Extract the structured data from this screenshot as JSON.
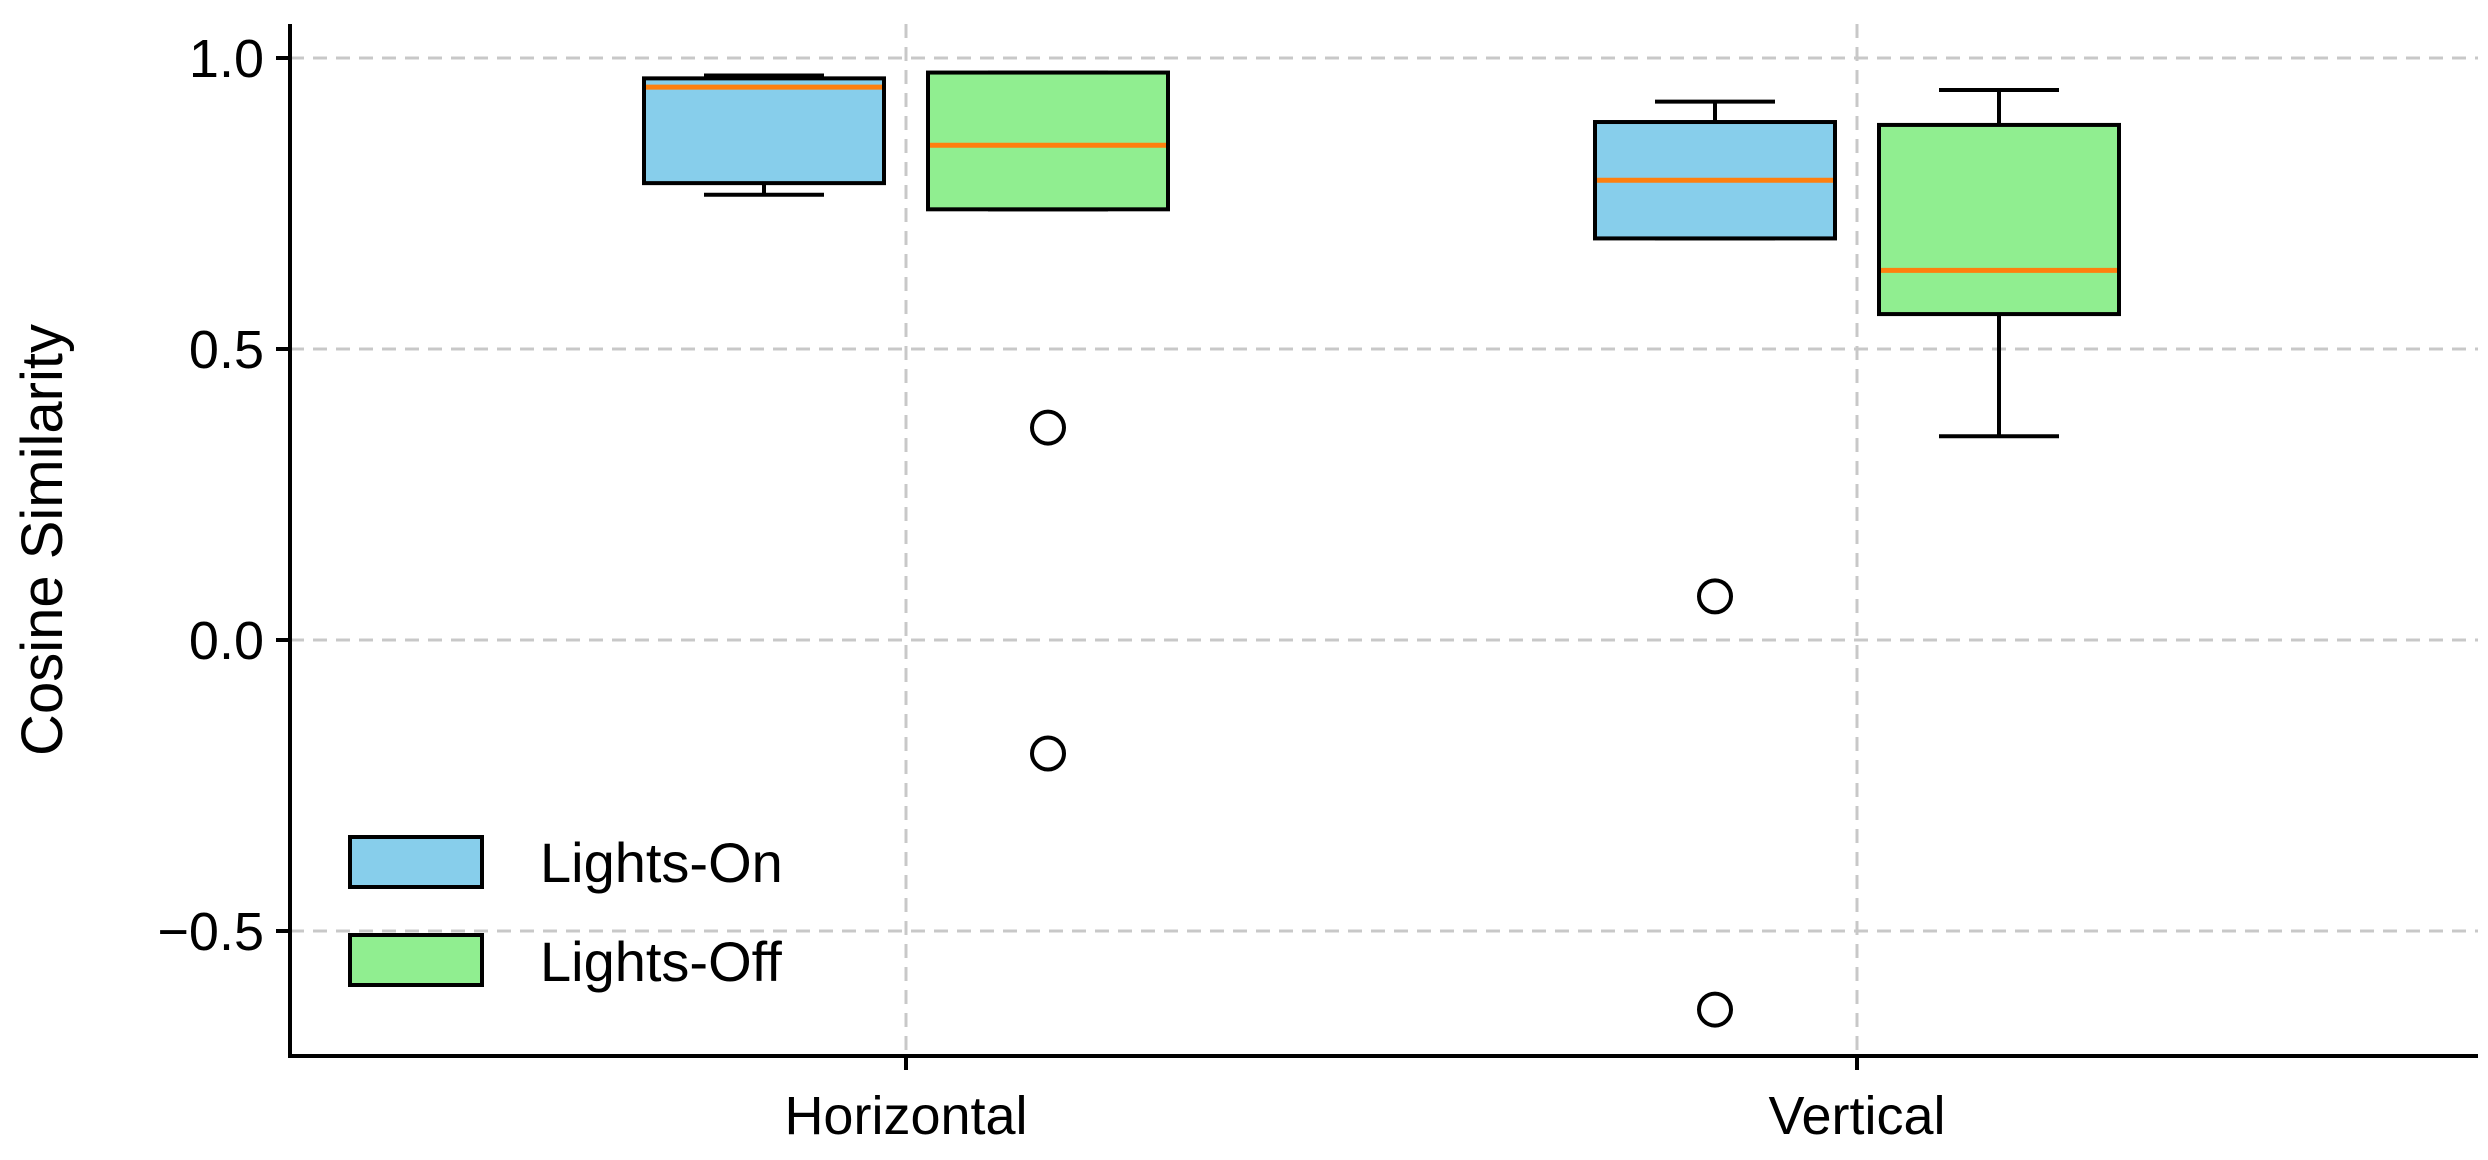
{
  "chart_data": {
    "type": "box",
    "ylabel": "Cosine Similarity",
    "xlabel": "",
    "categories": [
      "Horizontal",
      "Vertical"
    ],
    "ylim": [
      -0.71,
      1.05
    ],
    "yticks": [
      1.0,
      0.5,
      0.0,
      -0.5
    ],
    "ytick_labels": [
      "1.0",
      "0.5",
      "0.0",
      "−0.5"
    ],
    "grid": true,
    "legend_position": "lower-left",
    "series": [
      {
        "name": "Lights-On",
        "color": "#87ceeb",
        "boxes": [
          {
            "category": "Horizontal",
            "whisker_low": 0.765,
            "q1": 0.785,
            "median": 0.95,
            "q3": 0.965,
            "whisker_high": 0.97,
            "outliers": []
          },
          {
            "category": "Vertical",
            "whisker_low": 0.69,
            "q1": 0.69,
            "median": 0.79,
            "q3": 0.89,
            "whisker_high": 0.925,
            "outliers": [
              0.075,
              -0.635
            ]
          }
        ]
      },
      {
        "name": "Lights-Off",
        "color": "#90ee90",
        "boxes": [
          {
            "category": "Horizontal",
            "whisker_low": 0.74,
            "q1": 0.74,
            "median": 0.85,
            "q3": 0.975,
            "whisker_high": 0.975,
            "outliers": [
              0.365,
              -0.195
            ]
          },
          {
            "category": "Vertical",
            "whisker_low": 0.35,
            "q1": 0.56,
            "median": 0.635,
            "q3": 0.885,
            "whisker_high": 0.945,
            "outliers": []
          }
        ]
      }
    ],
    "median_color": "#ff7f0e",
    "edge_color": "#000000",
    "grid_color": "#c8c8c8"
  }
}
